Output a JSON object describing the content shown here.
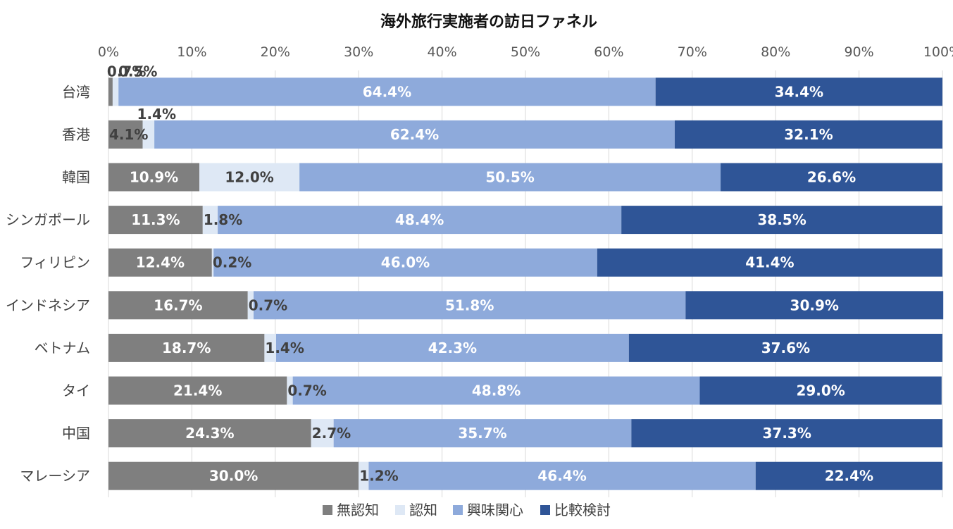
{
  "chart_data": {
    "type": "bar",
    "orientation": "horizontal",
    "stacked": "percent",
    "title": "海外旅行実施者の訪日ファネル",
    "categories": [
      "台湾",
      "香港",
      "韓国",
      "シンガポール",
      "フィリピン",
      "インドネシア",
      "ベトナム",
      "タイ",
      "中国",
      "マレーシア"
    ],
    "series": [
      {
        "name": "無認知",
        "color": "#7f7f7f",
        "label_color": "#ffffff",
        "values": [
          0.5,
          4.1,
          10.9,
          11.3,
          12.4,
          16.7,
          18.7,
          21.4,
          24.3,
          30.0
        ]
      },
      {
        "name": "認知",
        "color": "#dee8f5",
        "label_color": "#404040",
        "values": [
          0.7,
          1.4,
          12.0,
          1.8,
          0.2,
          0.7,
          1.4,
          0.7,
          2.7,
          1.2
        ]
      },
      {
        "name": "興味関心",
        "color": "#8eaadb",
        "label_color": "#ffffff",
        "values": [
          64.4,
          62.4,
          50.5,
          48.4,
          46.0,
          51.8,
          42.3,
          48.8,
          35.7,
          46.4
        ]
      },
      {
        "name": "比較検討",
        "color": "#2f5597",
        "label_color": "#ffffff",
        "values": [
          34.4,
          32.1,
          26.6,
          38.5,
          41.4,
          30.9,
          37.6,
          29.0,
          37.3,
          22.4
        ]
      }
    ],
    "xlim": [
      0,
      100
    ],
    "x_ticks": [
      "0%",
      "10%",
      "20%",
      "30%",
      "40%",
      "50%",
      "60%",
      "70%",
      "80%",
      "90%",
      "100%"
    ],
    "grid": true,
    "legend_position": "bottom"
  }
}
